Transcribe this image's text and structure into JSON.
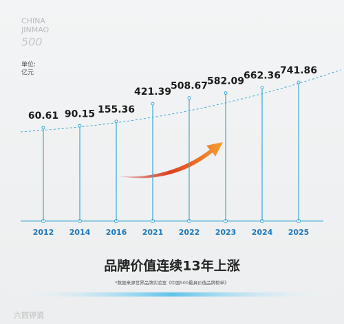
{
  "logo": {
    "line1": "CHINA",
    "line2": "JINMAO",
    "line3": "500"
  },
  "unit": {
    "label": "单位:",
    "value": "亿元"
  },
  "chart_data": {
    "type": "bar",
    "categories": [
      "2012",
      "2014",
      "2016",
      "2021",
      "2022",
      "2023",
      "2024",
      "2025"
    ],
    "values": [
      60.61,
      90.15,
      155.36,
      421.39,
      508.67,
      582.09,
      662.36,
      741.86
    ],
    "color": "#3aa8d8"
  },
  "headline": "品牌价值连续13年上涨",
  "footnote": "*数据来源世界品牌实验室《中国500最具价值品牌榜单》",
  "watermark": "六西评说"
}
